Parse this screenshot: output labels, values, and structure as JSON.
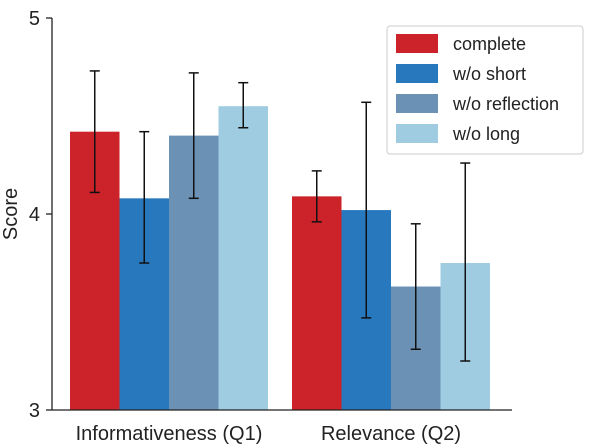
{
  "chart_data": {
    "type": "bar",
    "title": "",
    "xlabel": "",
    "ylabel": "Score",
    "ylim": [
      3,
      5
    ],
    "yticks": [
      3,
      4,
      5
    ],
    "grid": false,
    "legend_position": "top-right",
    "categories": [
      "Informativeness (Q1)",
      "Relevance (Q2)"
    ],
    "series": [
      {
        "name": "complete",
        "color": "#cc2229",
        "values": [
          4.42,
          4.09
        ],
        "error_low": [
          4.11,
          3.96
        ],
        "error_high": [
          4.73,
          4.22
        ]
      },
      {
        "name": "w/o short",
        "color": "#2878bd",
        "values": [
          4.08,
          4.02
        ],
        "error_low": [
          3.75,
          3.47
        ],
        "error_high": [
          4.42,
          4.57
        ]
      },
      {
        "name": "w/o reflection",
        "color": "#6b92b5",
        "values": [
          4.4,
          3.63
        ],
        "error_low": [
          4.08,
          3.31
        ],
        "error_high": [
          4.72,
          3.95
        ]
      },
      {
        "name": "w/o long",
        "color": "#9fcce0",
        "values": [
          4.55,
          3.75
        ],
        "error_low": [
          4.44,
          3.25
        ],
        "error_high": [
          4.67,
          4.26
        ]
      }
    ]
  }
}
